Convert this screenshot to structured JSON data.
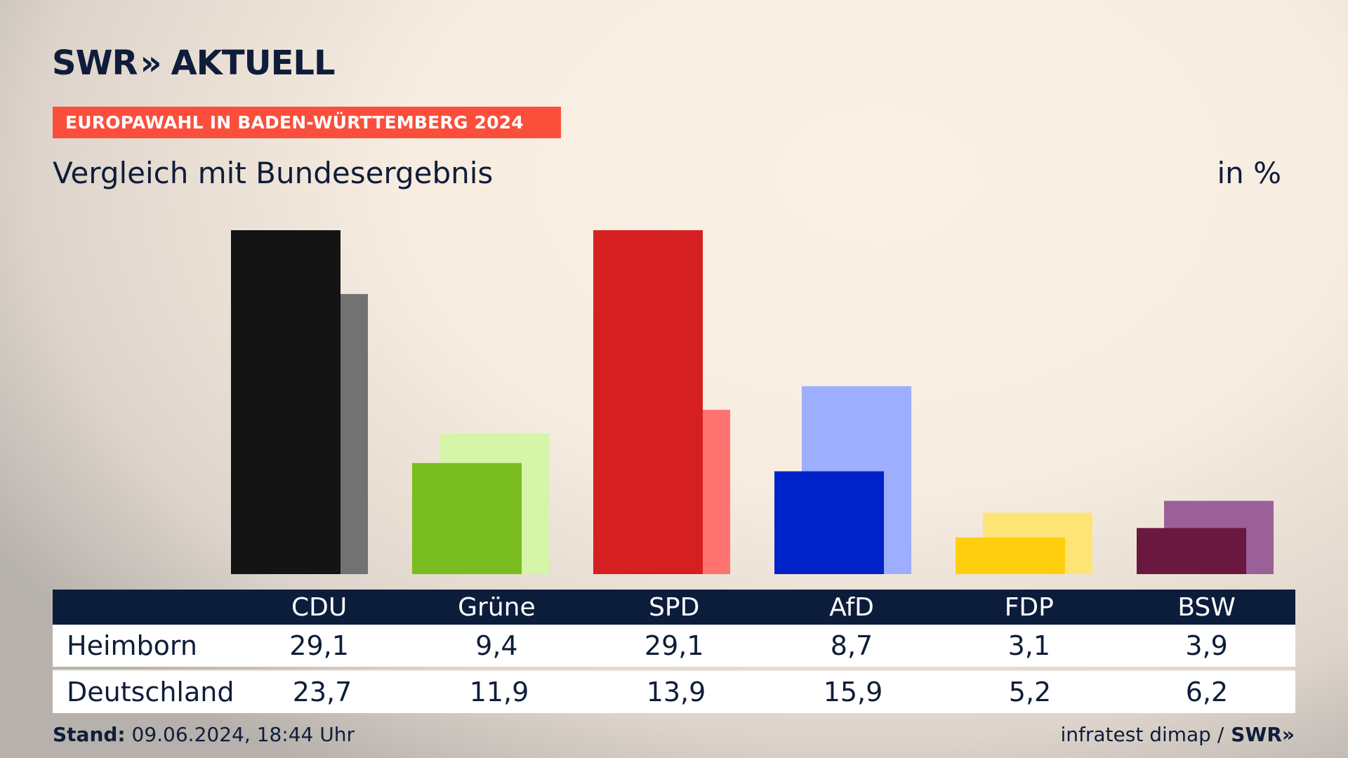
{
  "header": {
    "logo_text_1": "SWR",
    "logo_chevrons": "»",
    "logo_text_2": "AKTUELL",
    "subtitle": "EUROPAWAHL IN BADEN-WÜRTTEMBERG 2024",
    "title": "Vergleich mit Bundesergebnis",
    "unit": "in %"
  },
  "table": {
    "rows": [
      {
        "label": "Heimborn",
        "values": [
          "29,1",
          "9,4",
          "29,1",
          "8,7",
          "3,1",
          "3,9"
        ]
      },
      {
        "label": "Deutschland",
        "values": [
          "23,7",
          "11,9",
          "13,9",
          "15,9",
          "5,2",
          "6,2"
        ]
      }
    ]
  },
  "footer": {
    "stand_label": "Stand:",
    "stand_value": " 09.06.2024, 18:44 Uhr",
    "source": "infratest dimap /",
    "source_logo": "SWR»"
  },
  "colors": {
    "CDU": {
      "local": "#141414",
      "national": "#727272"
    },
    "Grüne": {
      "local": "#79bc1f",
      "national": "#d5f5a9"
    },
    "SPD": {
      "local": "#d61f20",
      "national": "#ff7370"
    },
    "AfD": {
      "local": "#0022c9",
      "national": "#9eaeff"
    },
    "FDP": {
      "local": "#ffcf0f",
      "national": "#fee476"
    },
    "BSW": {
      "local": "#6b1840",
      "national": "#9b6098"
    }
  },
  "chart_data": {
    "type": "bar",
    "categories": [
      "CDU",
      "Grüne",
      "SPD",
      "AfD",
      "FDP",
      "BSW"
    ],
    "series": [
      {
        "name": "Heimborn",
        "values": [
          29.1,
          9.4,
          29.1,
          8.7,
          3.1,
          3.9
        ]
      },
      {
        "name": "Deutschland",
        "values": [
          23.7,
          11.9,
          13.9,
          15.9,
          5.2,
          6.2
        ]
      }
    ],
    "title": "Vergleich mit Bundesergebnis",
    "ylabel": "in %",
    "ylim": [
      0,
      29.1
    ],
    "grid": false,
    "legend": "table-below"
  }
}
